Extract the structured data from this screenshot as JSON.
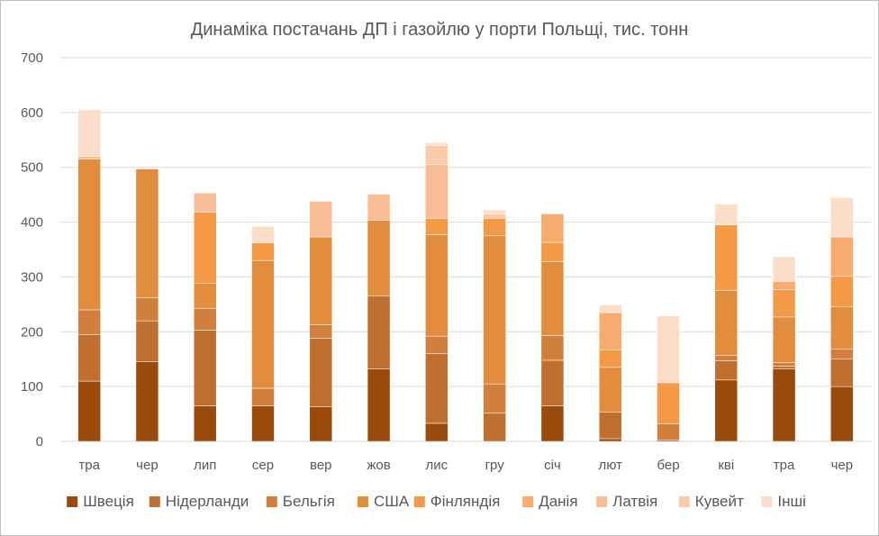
{
  "chart_data": {
    "type": "bar",
    "stacked": true,
    "title": "Динаміка постачань ДП і газойлю у порти Польщі, тис. тонн",
    "xlabel": "",
    "ylabel": "",
    "ylim": [
      0,
      700
    ],
    "yticks": [
      0,
      100,
      200,
      300,
      400,
      500,
      600,
      700
    ],
    "grid": true,
    "legend_position": "bottom",
    "categories": [
      "тра",
      "чер",
      "лип",
      "сер",
      "вер",
      "жов",
      "лис",
      "гру",
      "січ",
      "лют",
      "бер",
      "кві",
      "тра",
      "чер"
    ],
    "series": [
      {
        "name": "Швеція",
        "color": "#9a4a0b",
        "values": [
          110,
          145,
          65,
          65,
          63,
          132,
          33,
          0,
          65,
          5,
          2,
          112,
          132,
          100
        ]
      },
      {
        "name": "Нідерланди",
        "color": "#bf7030",
        "values": [
          85,
          75,
          138,
          0,
          125,
          133,
          127,
          52,
          83,
          48,
          0,
          35,
          5,
          50
        ]
      },
      {
        "name": "Бельгія",
        "color": "#d0803c",
        "values": [
          45,
          42,
          40,
          32,
          25,
          0,
          32,
          53,
          45,
          0,
          30,
          10,
          7,
          18
        ]
      },
      {
        "name": "США",
        "color": "#e28c3e",
        "values": [
          275,
          235,
          45,
          233,
          160,
          138,
          185,
          270,
          135,
          82,
          0,
          118,
          83,
          78
        ]
      },
      {
        "name": "Фінляндія",
        "color": "#f49a46",
        "values": [
          0,
          0,
          130,
          32,
          0,
          0,
          30,
          32,
          35,
          32,
          75,
          120,
          50,
          55
        ]
      },
      {
        "name": "Данія",
        "color": "#f7ab6f",
        "values": [
          0,
          0,
          0,
          0,
          0,
          0,
          0,
          0,
          52,
          68,
          0,
          0,
          15,
          72
        ]
      },
      {
        "name": "Латвія",
        "color": "#f8bd97",
        "values": [
          5,
          0,
          35,
          0,
          65,
          48,
          98,
          0,
          0,
          0,
          0,
          0,
          0,
          0
        ]
      },
      {
        "name": "Кувейт",
        "color": "#f9cbab",
        "values": [
          0,
          0,
          0,
          0,
          0,
          0,
          35,
          8,
          0,
          0,
          0,
          0,
          0,
          0
        ]
      },
      {
        "name": "Інші",
        "color": "#fbddca",
        "values": [
          85,
          0,
          0,
          30,
          0,
          0,
          5,
          7,
          0,
          14,
          122,
          38,
          45,
          72
        ]
      }
    ]
  }
}
